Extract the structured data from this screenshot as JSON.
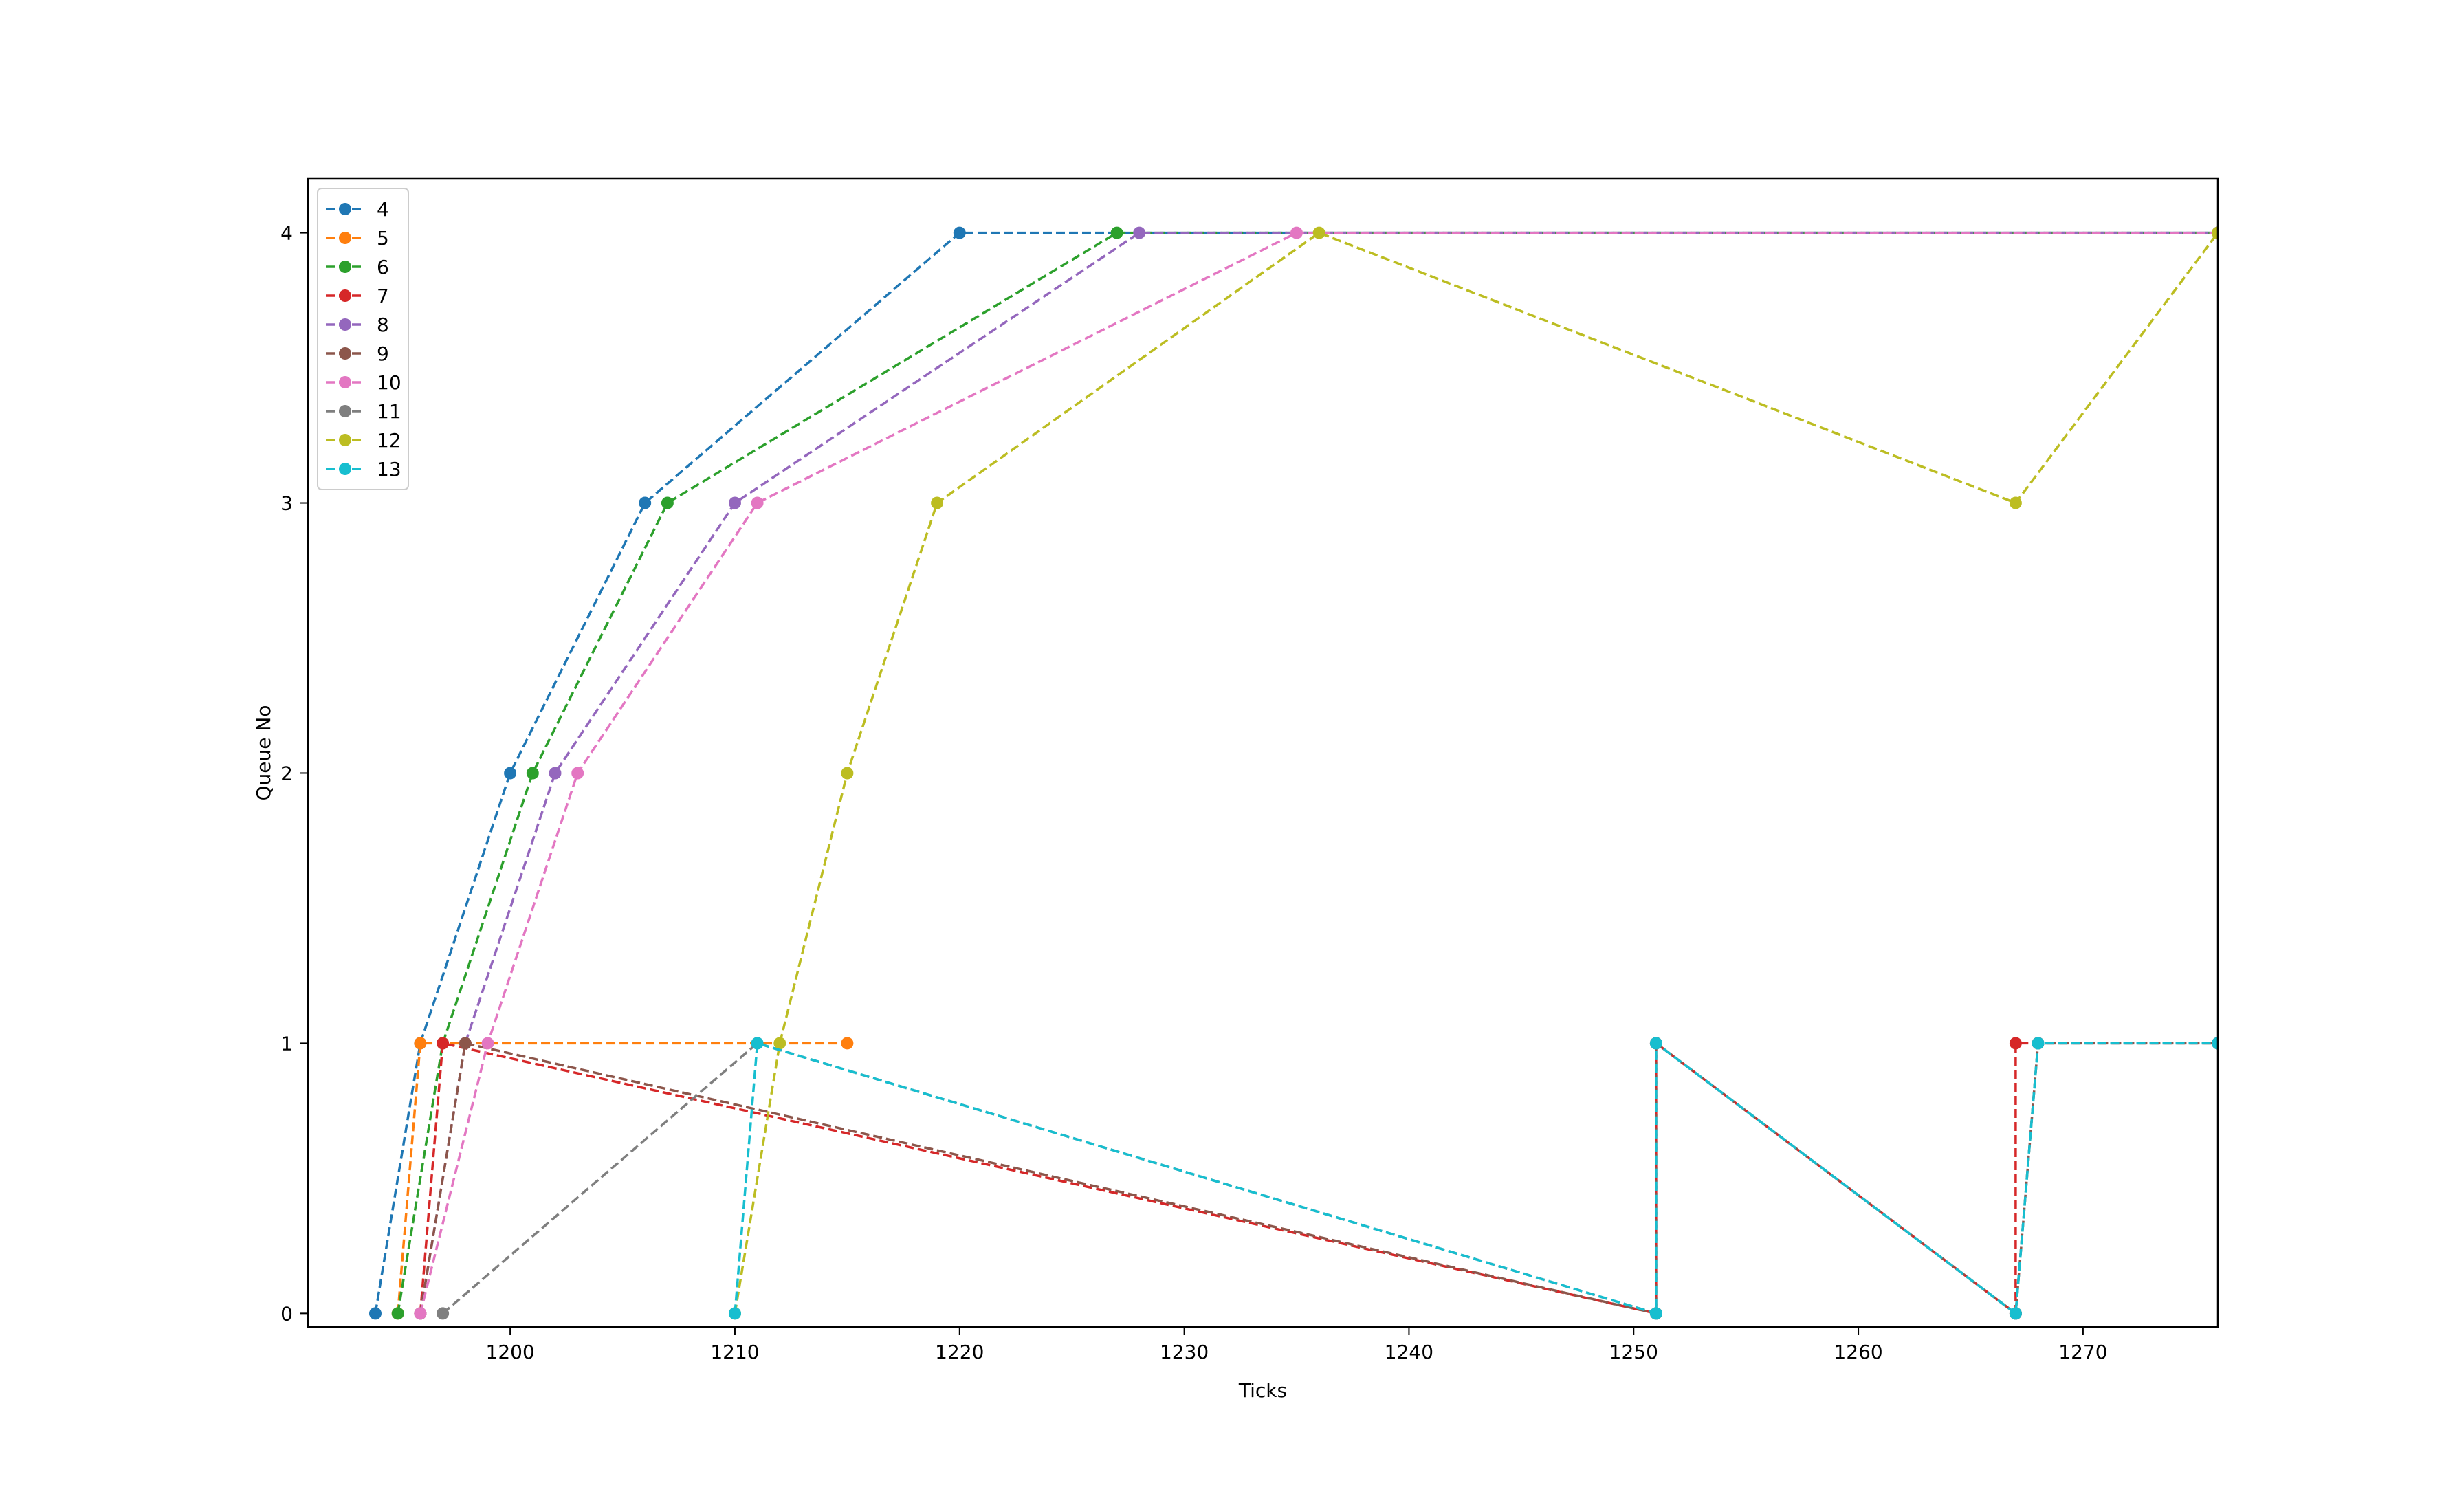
{
  "chart_data": {
    "type": "line",
    "title": "",
    "xlabel": "Ticks",
    "ylabel": "Queue No",
    "xlim": [
      1191,
      1276
    ],
    "ylim": [
      -0.05,
      4.2
    ],
    "xticks": [
      1200,
      1210,
      1220,
      1230,
      1240,
      1250,
      1260,
      1270
    ],
    "yticks": [
      0,
      1,
      2,
      3,
      4
    ],
    "grid": false,
    "legend_position": "top-left",
    "series": [
      {
        "name": "4",
        "color": "#1f77b4",
        "points": [
          [
            1194,
            0
          ],
          [
            1196,
            1
          ],
          [
            1200,
            2
          ],
          [
            1206,
            3
          ],
          [
            1220,
            4
          ],
          [
            1276,
            4
          ]
        ]
      },
      {
        "name": "5",
        "color": "#ff7f0e",
        "points": [
          [
            1195,
            0
          ],
          [
            1196,
            1
          ],
          [
            1215,
            1
          ]
        ]
      },
      {
        "name": "6",
        "color": "#2ca02c",
        "points": [
          [
            1195,
            0
          ],
          [
            1197,
            1
          ],
          [
            1201,
            2
          ],
          [
            1207,
            3
          ],
          [
            1227,
            4
          ],
          [
            1276,
            4
          ]
        ]
      },
      {
        "name": "7",
        "color": "#d62728",
        "points": [
          [
            1196,
            0
          ],
          [
            1197,
            1
          ],
          [
            1251,
            0
          ],
          [
            1251,
            1
          ],
          [
            1267,
            0
          ],
          [
            1267,
            1
          ],
          [
            1268,
            1
          ],
          [
            1276,
            1
          ]
        ]
      },
      {
        "name": "8",
        "color": "#9467bd",
        "points": [
          [
            1196,
            0
          ],
          [
            1198,
            1
          ],
          [
            1202,
            2
          ],
          [
            1210,
            3
          ],
          [
            1228,
            4
          ],
          [
            1276,
            4
          ]
        ]
      },
      {
        "name": "9",
        "color": "#8c564b",
        "points": [
          [
            1196,
            0
          ],
          [
            1198,
            1
          ],
          [
            1251,
            0
          ],
          [
            1251,
            1
          ],
          [
            1267,
            0
          ],
          [
            1268,
            1
          ],
          [
            1276,
            1
          ]
        ]
      },
      {
        "name": "10",
        "color": "#e377c2",
        "points": [
          [
            1196,
            0
          ],
          [
            1199,
            1
          ],
          [
            1203,
            2
          ],
          [
            1211,
            3
          ],
          [
            1235,
            4
          ],
          [
            1276,
            4
          ]
        ]
      },
      {
        "name": "11",
        "color": "#7f7f7f",
        "points": [
          [
            1197,
            0
          ],
          [
            1211,
            1
          ],
          [
            1251,
            0
          ],
          [
            1251,
            1
          ],
          [
            1267,
            0
          ],
          [
            1268,
            1
          ],
          [
            1276,
            1
          ]
        ]
      },
      {
        "name": "12",
        "color": "#bcbd22",
        "points": [
          [
            1210,
            0
          ],
          [
            1212,
            1
          ],
          [
            1215,
            2
          ],
          [
            1219,
            3
          ],
          [
            1236,
            4
          ],
          [
            1267,
            3
          ],
          [
            1276,
            4
          ]
        ]
      },
      {
        "name": "13",
        "color": "#17becf",
        "points": [
          [
            1210,
            0
          ],
          [
            1211,
            1
          ],
          [
            1251,
            0
          ],
          [
            1251,
            1
          ],
          [
            1267,
            0
          ],
          [
            1268,
            1
          ],
          [
            1276,
            1
          ]
        ]
      }
    ]
  }
}
